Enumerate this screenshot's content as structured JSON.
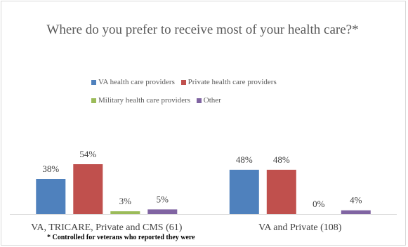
{
  "chart_data": {
    "type": "bar",
    "title": "Where do you prefer to receive most of your health care?*",
    "categories": [
      "VA, TRICARE, Private and CMS (61)",
      "VA and Private (108)"
    ],
    "series": [
      {
        "name": "VA health care providers",
        "color": "#4f81bd",
        "values": [
          38,
          48
        ],
        "labels": [
          "38%",
          "48%"
        ]
      },
      {
        "name": "Private health care providers",
        "color": "#c0504d",
        "values": [
          54,
          48
        ],
        "labels": [
          "54%",
          "48%"
        ]
      },
      {
        "name": "Military health care providers",
        "color": "#9bbb59",
        "values": [
          3,
          0
        ],
        "labels": [
          "3%",
          "0%"
        ]
      },
      {
        "name": "Other",
        "color": "#8064a2",
        "values": [
          5,
          4
        ],
        "labels": [
          "5%",
          "4%"
        ]
      }
    ],
    "ylim": [
      0,
      100
    ],
    "grid": false,
    "legend_position": "top",
    "footnote": "* Controlled for veterans who reported they were"
  }
}
